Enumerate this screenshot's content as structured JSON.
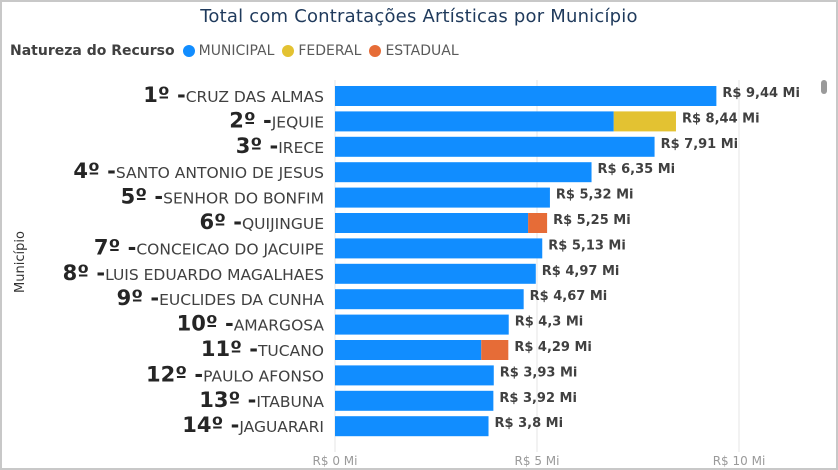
{
  "chart_data": {
    "type": "bar",
    "orientation": "horizontal",
    "stacked": true,
    "title": "Total com Contratações Artísticas por Município",
    "ylabel": "Município",
    "legend_title": "Natureza do Recurso",
    "legend_position": "top-left",
    "grid": true,
    "xlim": [
      0,
      11
    ],
    "x_ticks": [
      0,
      5,
      10
    ],
    "x_tick_labels": [
      "R$ 0 Mi",
      "R$ 5 Mi",
      "R$ 10 Mi"
    ],
    "categories": [
      {
        "rank": "1º",
        "name": "CRUZ DAS ALMAS"
      },
      {
        "rank": "2º",
        "name": "JEQUIE"
      },
      {
        "rank": "3º",
        "name": "IRECE"
      },
      {
        "rank": "4º",
        "name": "SANTO ANTONIO DE JESUS"
      },
      {
        "rank": "5º",
        "name": "SENHOR DO BONFIM"
      },
      {
        "rank": "6º",
        "name": "QUIJINGUE"
      },
      {
        "rank": "7º",
        "name": "CONCEICAO DO JACUIPE"
      },
      {
        "rank": "8º",
        "name": "LUIS EDUARDO MAGALHAES"
      },
      {
        "rank": "9º",
        "name": "EUCLIDES DA CUNHA"
      },
      {
        "rank": "10º",
        "name": "AMARGOSA"
      },
      {
        "rank": "11º",
        "name": "TUCANO"
      },
      {
        "rank": "12º",
        "name": "PAULO AFONSO"
      },
      {
        "rank": "13º",
        "name": "ITABUNA"
      },
      {
        "rank": "14º",
        "name": "JAGUARARI"
      }
    ],
    "series": [
      {
        "name": "MUNICIPAL",
        "color": "#118DFF",
        "values": [
          9.44,
          6.9,
          7.91,
          6.35,
          5.32,
          4.78,
          5.13,
          4.97,
          4.67,
          4.3,
          3.62,
          3.93,
          3.92,
          3.8
        ]
      },
      {
        "name": "FEDERAL",
        "color": "#E3C232",
        "values": [
          0,
          1.54,
          0,
          0,
          0,
          0,
          0,
          0,
          0,
          0,
          0,
          0,
          0,
          0
        ]
      },
      {
        "name": "ESTADUAL",
        "color": "#E66C37",
        "values": [
          0,
          0,
          0,
          0,
          0,
          0.47,
          0,
          0,
          0,
          0,
          0.67,
          0,
          0,
          0
        ]
      }
    ],
    "totals": [
      9.44,
      8.44,
      7.91,
      6.35,
      5.32,
      5.25,
      5.13,
      4.97,
      4.67,
      4.3,
      4.29,
      3.93,
      3.92,
      3.8
    ],
    "total_labels": [
      "R$ 9,44 Mi",
      "R$ 8,44 Mi",
      "R$ 7,91 Mi",
      "R$ 6,35 Mi",
      "R$ 5,32 Mi",
      "R$ 5,25 Mi",
      "R$ 5,13 Mi",
      "R$ 4,97 Mi",
      "R$ 4,67 Mi",
      "R$ 4,3 Mi",
      "R$ 4,29 Mi",
      "R$ 3,93 Mi",
      "R$ 3,92 Mi",
      "R$ 3,8 Mi"
    ]
  }
}
